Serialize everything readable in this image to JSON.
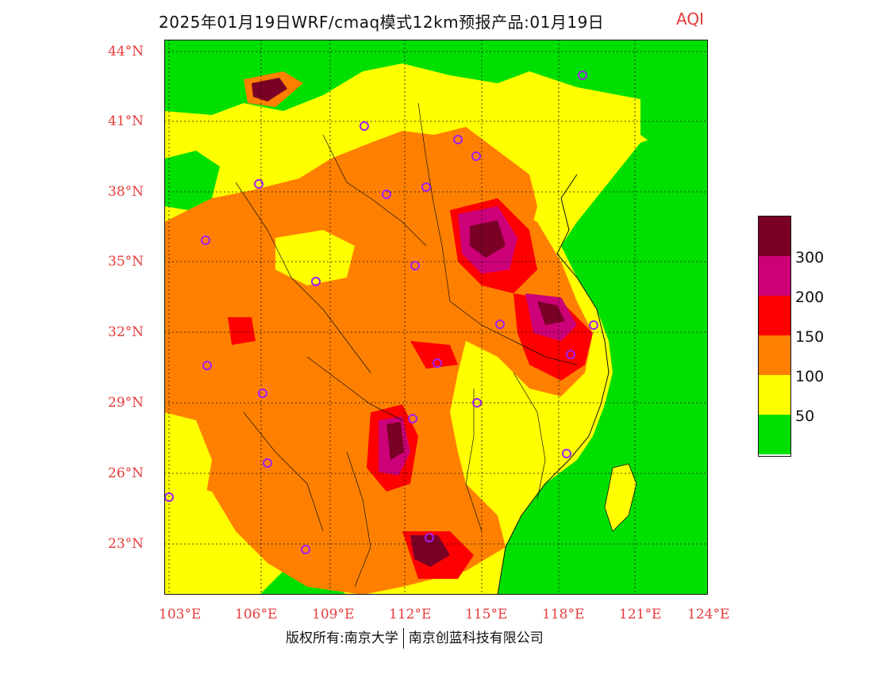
{
  "title": {
    "text": "2025年01月19日WRF/cmaq模式12km预报产品:01月19日",
    "variable": "AQI"
  },
  "map": {
    "latitude_labels": [
      "44°N",
      "41°N",
      "38°N",
      "35°N",
      "32°N",
      "29°N",
      "26°N",
      "23°N"
    ],
    "longitude_labels": [
      "103°E",
      "106°E",
      "109°E",
      "112°E",
      "115°E",
      "118°E",
      "121°E",
      "124°E"
    ]
  },
  "legend": {
    "labels": [
      "300",
      "200",
      "150",
      "100",
      "50"
    ],
    "colors": [
      "#7a0026",
      "#cc0077",
      "#ff0000",
      "#ff8000",
      "#ffff00",
      "#00e000"
    ]
  },
  "footer": {
    "left": "版权所有:南京大学",
    "right": "南京创蓝科技有限公司"
  },
  "colors": {
    "grid_label": "#e63b3b",
    "station_marker": "#a020f0",
    "ocean": "#00e000"
  }
}
